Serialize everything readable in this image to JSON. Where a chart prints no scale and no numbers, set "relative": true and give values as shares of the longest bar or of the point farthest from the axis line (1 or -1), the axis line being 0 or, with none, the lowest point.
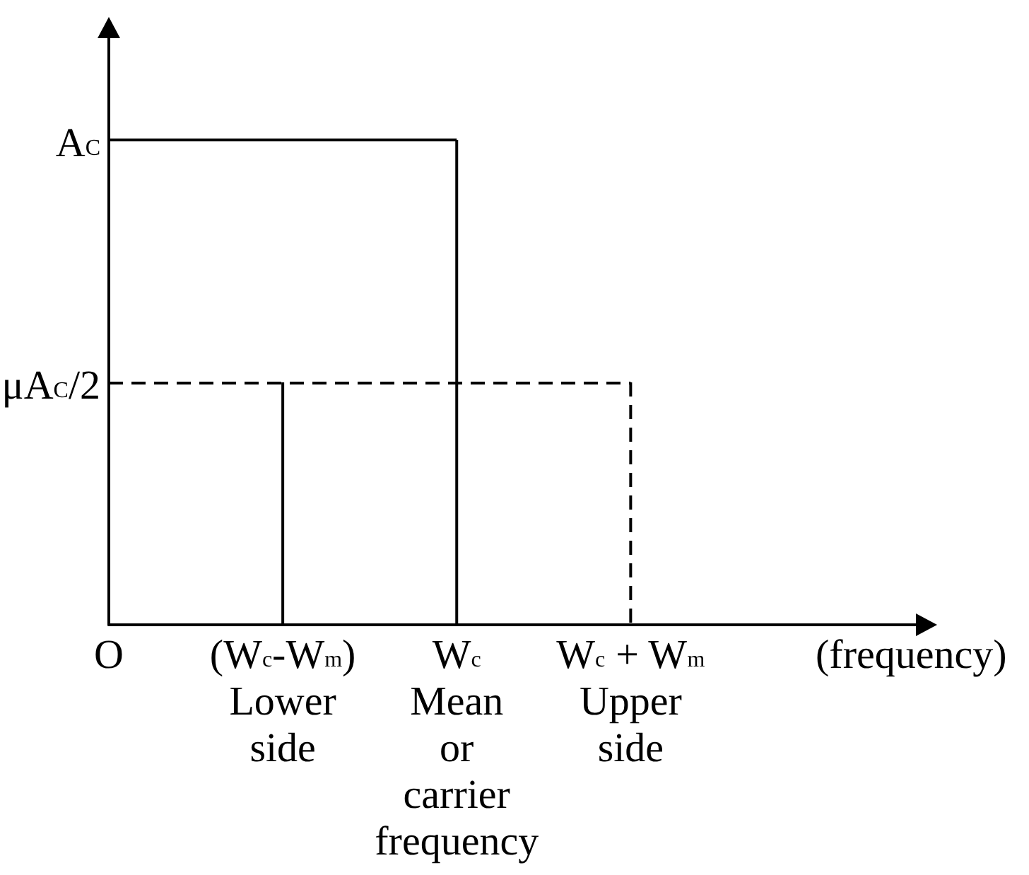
{
  "chart_data": {
    "type": "bar",
    "relative": true,
    "xlabel": "(frequency)",
    "categories": [
      "O",
      "(W$_{c}$-W$_{m}$)\nLower\nside",
      "W$_{c}$\nMean\nor\ncarrier\nfrequency",
      "W$_{c}$ + W$_{m}$\nUpper\nside"
    ],
    "series": [
      {
        "color": "#000000",
        "values": [
          null,
          0.5,
          1,
          null
        ]
      },
      {
        "color": "#000000",
        "line_style": "dashed",
        "values": [
          null,
          null,
          null,
          0.5
        ]
      }
    ],
    "ref_lines": [
      {
        "axis": "y",
        "value": 1,
        "label": "A$_{C}$",
        "color": "#000000"
      },
      {
        "axis": "y",
        "value": 0.5,
        "label": "μA$_{C}$/2",
        "color": "#000000",
        "line_style": "dashed"
      }
    ]
  }
}
